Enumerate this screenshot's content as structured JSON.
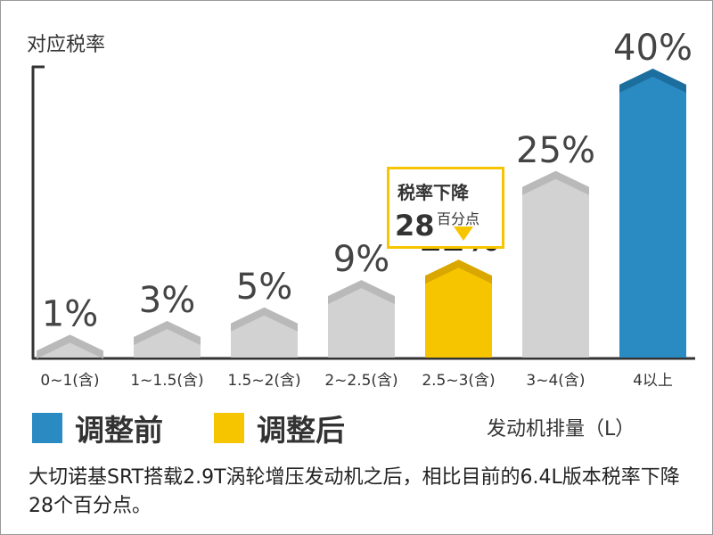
{
  "chart_data": {
    "type": "bar",
    "ylabel": "对应税率",
    "xlabel": "发动机排量（L）",
    "categories": [
      "0~1(含)",
      "1~1.5(含)",
      "1.5~2(含)",
      "2~2.5(含)",
      "2.5~3(含)",
      "3~4(含)",
      "4以上"
    ],
    "values": [
      1,
      3,
      5,
      9,
      12,
      25,
      40
    ],
    "value_labels": [
      "1%",
      "3%",
      "5%",
      "9%",
      "12%",
      "25%",
      "40%"
    ],
    "series_labels": [
      "调整前",
      "调整后"
    ],
    "highlight_after_index": 4,
    "highlight_before_index": 6,
    "ylim": [
      0,
      40
    ],
    "grid": false,
    "legend_position": "bottom-left",
    "callout": {
      "title": "税率下降",
      "number": "28",
      "unit": "百分点"
    }
  },
  "caption": "大切诺基SRT搭载2.9T涡轮增压发动机之后，相比目前的6.4L版本税率下降28个百分点。",
  "colors": {
    "before": "#2a8bc2",
    "before_dark": "#1c6e9f",
    "after": "#f7c500",
    "after_dark": "#d9a700",
    "normal": "#d2d2d2",
    "normal_dark": "#b9b9b9",
    "axis": "#333333"
  }
}
